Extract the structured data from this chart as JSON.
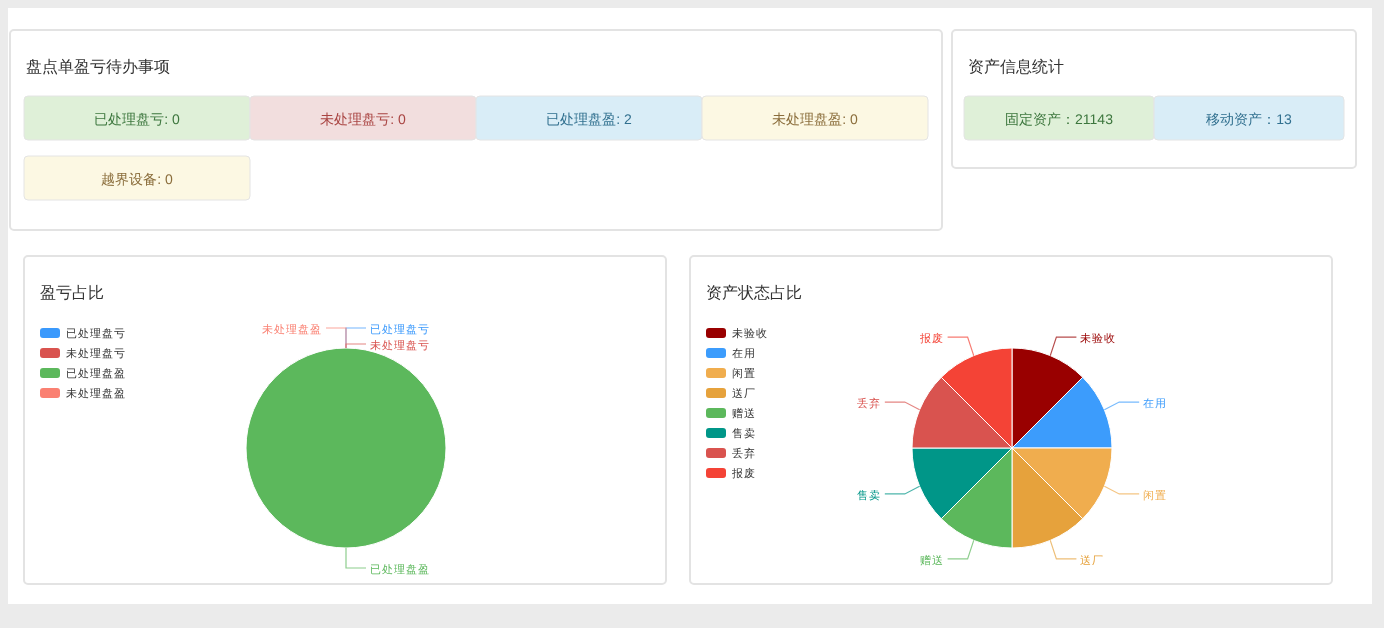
{
  "chart_data": [
    {
      "type": "other",
      "title": "盘点单盈亏待办事项",
      "annotations": [
        "已处理盘亏: 0",
        "未处理盘亏: 0",
        "已处理盘盈: 2",
        "未处理盘盈: 0",
        "越界设备: 0"
      ]
    },
    {
      "type": "other",
      "title": "资产信息统计",
      "annotations": [
        "固定资产：21143",
        "移动资产：13"
      ]
    },
    {
      "type": "pie",
      "title": "盈亏占比",
      "legend": "top left",
      "categories": [
        "已处理盘亏",
        "未处理盘亏",
        "已处理盘盈",
        "未处理盘盈"
      ],
      "values": [
        0,
        0,
        100,
        0
      ],
      "colors": [
        "#3a99fc",
        "#d9534f",
        "#5cb85c",
        "#fa8072"
      ]
    },
    {
      "type": "pie",
      "title": "资产状态占比",
      "legend": "top left",
      "categories": [
        "未验收",
        "在用",
        "闲置",
        "送厂",
        "赠送",
        "售卖",
        "丢弃",
        "报废"
      ],
      "values": [
        12.5,
        12.5,
        12.5,
        12.5,
        12.5,
        12.5,
        12.5,
        12.5
      ],
      "colors": [
        "#990000",
        "#3c9cfc",
        "#f0ad4e",
        "#e6a23c",
        "#5cb85c",
        "#009688",
        "#d9534f",
        "#f44336"
      ]
    }
  ]
}
